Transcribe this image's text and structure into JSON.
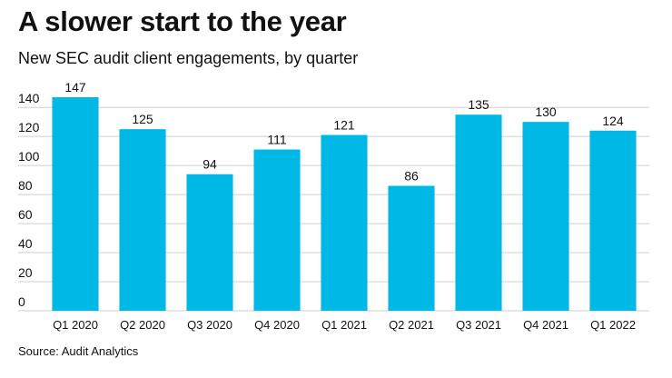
{
  "header": {
    "title": "A slower start to the year",
    "subtitle": "New SEC audit client engagements, by quarter"
  },
  "footer": {
    "source": "Source: Audit Analytics"
  },
  "colors": {
    "bar": "#00b8e6",
    "grid": "#cfcfcf",
    "text": "#111111"
  },
  "chart_data": {
    "type": "bar",
    "title": "A slower start to the year",
    "subtitle": "New SEC audit client engagements, by quarter",
    "categories": [
      "Q1 2020",
      "Q2 2020",
      "Q3 2020",
      "Q4 2020",
      "Q1 2021",
      "Q2 2021",
      "Q3 2021",
      "Q4 2021",
      "Q1 2022"
    ],
    "values": [
      147,
      125,
      94,
      111,
      121,
      86,
      135,
      130,
      124
    ],
    "data_labels": [
      "147",
      "125",
      "94",
      "111",
      "121",
      "86",
      "135",
      "130",
      "124"
    ],
    "yticks": [
      0,
      20,
      40,
      60,
      80,
      100,
      120,
      140
    ],
    "ytick_labels": [
      "0",
      "20",
      "40",
      "60",
      "80",
      "100",
      "120",
      "140"
    ],
    "ylim": [
      0,
      147
    ],
    "xlabel": "",
    "ylabel": "",
    "grid": true,
    "legend": "none"
  }
}
